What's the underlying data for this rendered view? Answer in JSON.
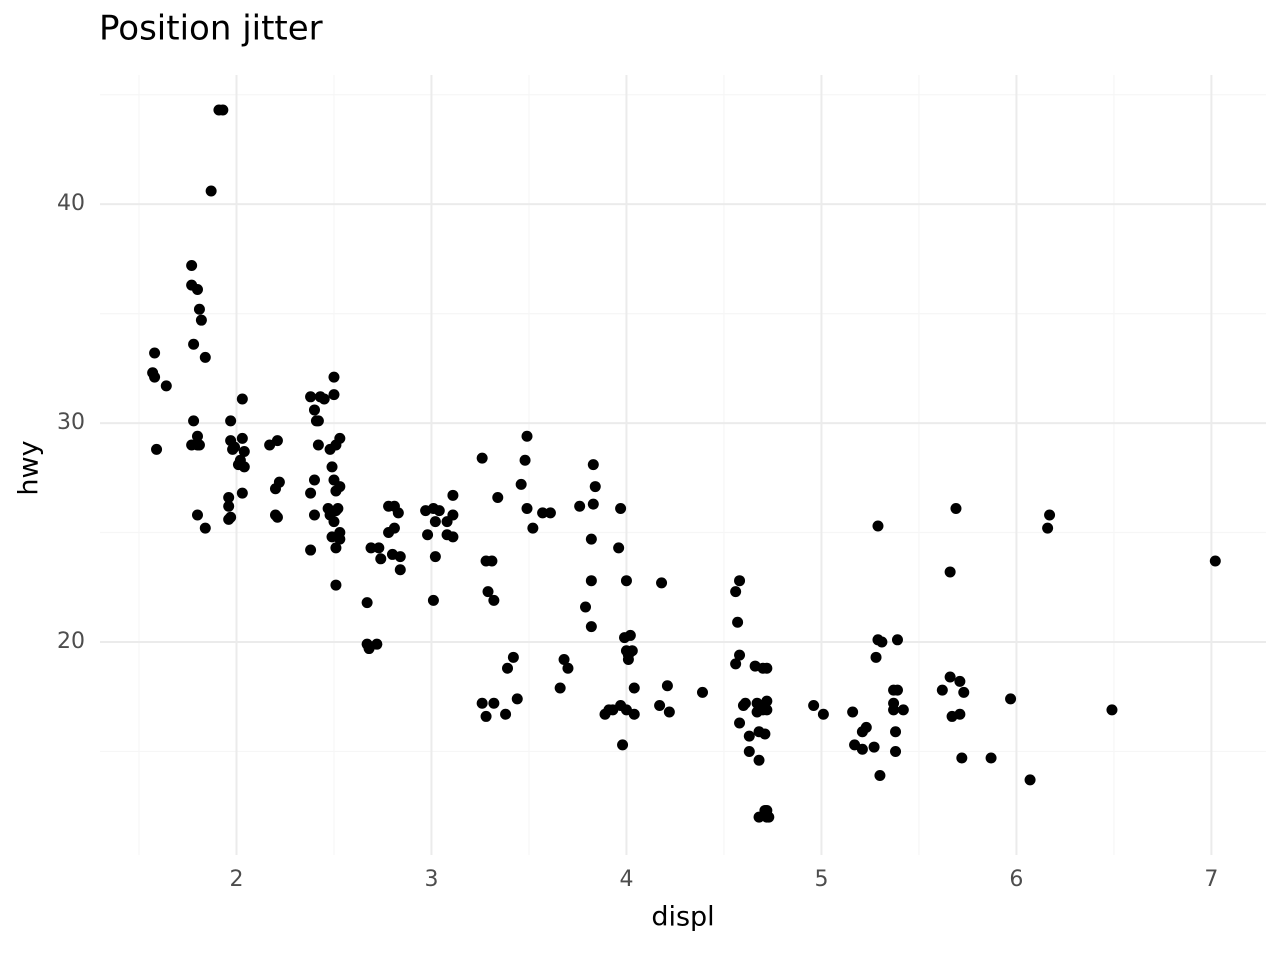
{
  "chart_data": {
    "type": "scatter",
    "title": "Position jitter",
    "x_label": "displ",
    "y_label": "hwy",
    "color": "#000000",
    "grid": true,
    "xlim": [
      1.3,
      7.28
    ],
    "ylim": [
      10.27,
      45.9
    ],
    "xticks": [
      2,
      3,
      4,
      5,
      6,
      7
    ],
    "yticks": [
      20,
      30,
      40
    ],
    "x": [
      1.91,
      1.93,
      1.87,
      1.77,
      1.77,
      1.8,
      1.81,
      1.82,
      1.78,
      1.84,
      1.58,
      1.57,
      1.58,
      1.64,
      2.03,
      1.97,
      1.78,
      1.59,
      1.77,
      1.8,
      1.81,
      1.8,
      1.97,
      1.98,
      1.99,
      2.03,
      2.04,
      2.02,
      2.01,
      2.04,
      1.96,
      1.96,
      1.97,
      1.96,
      2.03,
      1.8,
      1.84,
      2.17,
      2.21,
      2.22,
      2.2,
      2.2,
      2.21,
      2.38,
      2.43,
      2.45,
      2.5,
      2.5,
      2.4,
      2.41,
      2.42,
      2.42,
      2.53,
      2.51,
      2.48,
      2.49,
      2.5,
      2.53,
      2.51,
      2.4,
      2.38,
      2.4,
      2.47,
      2.48,
      2.51,
      2.52,
      2.5,
      2.53,
      2.53,
      2.51,
      2.49,
      2.38,
      2.51,
      2.67,
      2.67,
      2.68,
      2.72,
      2.69,
      2.73,
      2.74,
      2.78,
      2.81,
      2.83,
      2.78,
      2.81,
      2.8,
      2.84,
      2.84,
      2.97,
      2.98,
      3.01,
      3.02,
      3.04,
      3.08,
      3.08,
      3.11,
      3.11,
      3.11,
      3.02,
      3.01,
      3.26,
      3.28,
      3.31,
      3.29,
      3.32,
      3.34,
      3.26,
      3.28,
      3.32,
      3.38,
      3.39,
      3.42,
      3.44,
      3.49,
      3.48,
      3.46,
      3.49,
      3.52,
      3.57,
      3.61,
      3.68,
      3.7,
      3.66,
      3.76,
      3.83,
      3.84,
      3.83,
      3.82,
      3.82,
      3.79,
      3.82,
      3.97,
      3.96,
      4.0,
      3.99,
      4.02,
      4.0,
      4.03,
      4.01,
      4.01,
      3.89,
      3.91,
      3.93,
      3.97,
      4.0,
      4.04,
      4.04,
      3.98,
      4.18,
      4.17,
      4.22,
      4.21,
      4.39,
      4.58,
      4.56,
      4.57,
      4.56,
      4.58,
      4.6,
      4.61,
      4.58,
      4.63,
      4.63,
      4.68,
      4.66,
      4.7,
      4.72,
      4.67,
      4.69,
      4.72,
      4.67,
      4.7,
      4.72,
      4.68,
      4.71,
      4.71,
      4.72,
      4.68,
      4.72,
      4.73,
      4.96,
      5.01,
      5.16,
      5.17,
      5.21,
      5.23,
      5.21,
      5.27,
      5.29,
      5.29,
      5.31,
      5.28,
      5.3,
      5.39,
      5.37,
      5.39,
      5.37,
      5.37,
      5.42,
      5.38,
      5.38,
      5.69,
      5.66,
      5.66,
      5.71,
      5.73,
      5.62,
      5.67,
      5.71,
      5.72,
      5.87,
      5.97,
      6.07,
      6.17,
      6.16,
      6.49,
      7.02
    ],
    "values": [
      44.3,
      44.3,
      40.6,
      37.2,
      36.3,
      36.1,
      35.2,
      34.7,
      33.6,
      33.0,
      33.2,
      32.3,
      32.1,
      31.7,
      31.1,
      30.1,
      30.1,
      28.8,
      29.0,
      29.0,
      29.0,
      29.4,
      29.2,
      28.8,
      28.9,
      29.3,
      28.7,
      28.3,
      28.1,
      28.0,
      26.6,
      26.2,
      25.7,
      25.6,
      26.8,
      25.8,
      25.2,
      29.0,
      29.2,
      27.3,
      27.0,
      25.8,
      25.7,
      31.2,
      31.2,
      31.1,
      31.3,
      32.1,
      30.6,
      30.1,
      30.1,
      29.0,
      29.3,
      29.0,
      28.8,
      28.0,
      27.4,
      27.1,
      26.9,
      27.4,
      26.8,
      25.8,
      26.1,
      25.8,
      26.0,
      26.1,
      25.5,
      25.0,
      24.7,
      24.3,
      24.8,
      24.2,
      22.6,
      21.8,
      19.9,
      19.7,
      19.9,
      24.3,
      24.3,
      23.8,
      26.2,
      26.2,
      25.9,
      25.0,
      25.2,
      24.0,
      23.9,
      23.3,
      26.0,
      24.9,
      26.1,
      25.5,
      26.0,
      25.5,
      24.9,
      24.8,
      26.7,
      25.8,
      23.9,
      21.9,
      28.4,
      23.7,
      23.7,
      22.3,
      21.9,
      26.6,
      17.2,
      16.6,
      17.2,
      16.7,
      18.8,
      19.3,
      17.4,
      29.4,
      28.3,
      27.2,
      26.1,
      25.2,
      25.9,
      25.9,
      19.2,
      18.8,
      17.9,
      26.2,
      28.1,
      27.1,
      26.3,
      24.7,
      22.8,
      21.6,
      20.7,
      26.1,
      24.3,
      22.8,
      20.2,
      20.3,
      19.6,
      19.6,
      19.2,
      19.4,
      16.7,
      16.9,
      16.9,
      17.1,
      16.9,
      16.7,
      17.9,
      15.3,
      22.7,
      17.1,
      16.8,
      18.0,
      17.7,
      22.8,
      22.3,
      20.9,
      19.0,
      19.4,
      17.1,
      17.2,
      16.3,
      15.7,
      15.0,
      14.6,
      18.9,
      18.8,
      18.8,
      17.2,
      17.1,
      17.3,
      16.8,
      16.9,
      16.9,
      15.9,
      15.8,
      12.3,
      12.3,
      12.0,
      12.0,
      12.0,
      17.1,
      16.7,
      16.8,
      15.3,
      15.1,
      16.1,
      15.9,
      15.2,
      25.3,
      20.1,
      20.0,
      19.3,
      13.9,
      20.1,
      17.8,
      17.8,
      17.2,
      16.9,
      16.9,
      15.9,
      15.0,
      26.1,
      23.2,
      18.4,
      18.2,
      17.7,
      17.8,
      16.6,
      16.7,
      14.7,
      14.7,
      17.4,
      13.7,
      25.8,
      25.2,
      16.9,
      23.7
    ]
  }
}
